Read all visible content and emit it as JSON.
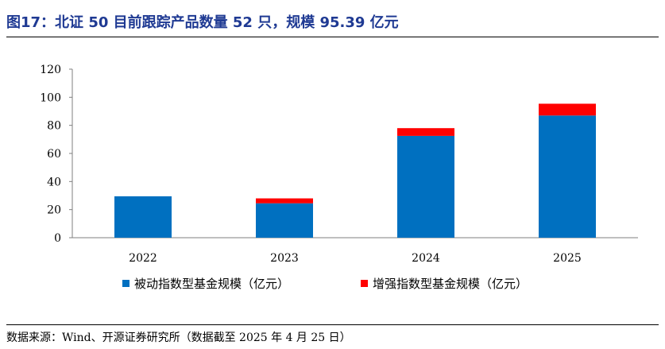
{
  "header": {
    "title": "图17：北证 50 目前跟踪产品数量 52 只，规模 95.39 亿元"
  },
  "footer": {
    "source": "数据来源：Wind、开源证券研究所（数据截至 2025 年 4 月 25 日）"
  },
  "colors": {
    "title": "#1f3a93",
    "passive": "#0070c0",
    "enhanced": "#ff0000"
  },
  "chart_data": {
    "type": "bar",
    "stacked": true,
    "categories": [
      "2022",
      "2023",
      "2024",
      "2025"
    ],
    "series": [
      {
        "name": "被动指数型基金规模（亿元）",
        "color": "#0070c0",
        "values": [
          29.5,
          24.5,
          72.5,
          87.0
        ]
      },
      {
        "name": "增强指数型基金规模（亿元）",
        "color": "#ff0000",
        "values": [
          0.0,
          3.5,
          5.5,
          8.4
        ]
      }
    ],
    "ylim": [
      0,
      120
    ],
    "yticks": [
      0,
      20,
      40,
      60,
      80,
      100,
      120
    ],
    "grid": false,
    "legend_position": "bottom"
  }
}
